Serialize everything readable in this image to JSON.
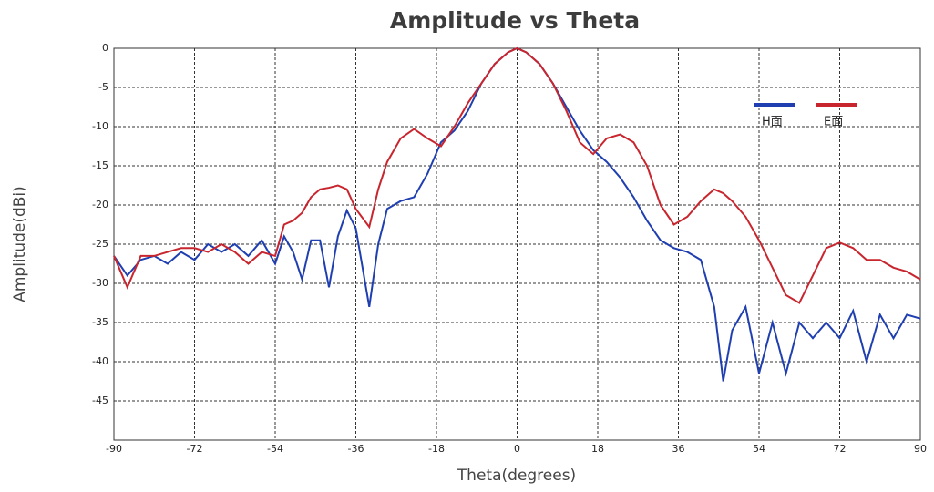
{
  "chart_data": {
    "type": "line",
    "title": "Amplitude vs Theta",
    "x_label": "Theta(degrees)",
    "y_label": "Amplitude(dBi)",
    "x": [
      -90,
      -87,
      -84,
      -81,
      -78,
      -75,
      -72,
      -69,
      -66,
      -63,
      -60,
      -57,
      -54,
      -52,
      -50,
      -48,
      -46,
      -44,
      -42,
      -40,
      -38,
      -36,
      -33,
      -31,
      -29,
      -26,
      -23,
      -20,
      -17,
      -14,
      -11,
      -8,
      -5,
      -2,
      0,
      2,
      5,
      8,
      11,
      14,
      17,
      20,
      23,
      26,
      29,
      32,
      35,
      38,
      41,
      44,
      46,
      48,
      51,
      54,
      57,
      60,
      63,
      66,
      69,
      72,
      75,
      78,
      81,
      84,
      87,
      90
    ],
    "series": [
      {
        "name": "H面",
        "color": "#1f3fb0",
        "values": [
          -26.5,
          -29,
          -27,
          -26.5,
          -27.5,
          -26,
          -27,
          -25,
          -26,
          -25,
          -26.5,
          -24.5,
          -27.5,
          -24,
          -26,
          -29.5,
          -24.5,
          -24.5,
          -30.5,
          -24,
          -20.7,
          -23,
          -33,
          -25,
          -20.5,
          -19.5,
          -19,
          -16,
          -12,
          -10.5,
          -8,
          -4.5,
          -2,
          -0.5,
          0,
          -0.5,
          -2,
          -4.5,
          -7.5,
          -10.5,
          -13,
          -14.5,
          -16.5,
          -19,
          -22,
          -24.5,
          -25.5,
          -26,
          -27,
          -33,
          -42.5,
          -36,
          -33,
          -41.5,
          -35,
          -41.5,
          -35,
          -37,
          -35,
          -37,
          -33.5,
          -40,
          -34,
          -37,
          -34,
          -34.5
        ]
      },
      {
        "name": "E面",
        "color": "#c8262e",
        "values": [
          -26.5,
          -30.5,
          -26.5,
          -26.5,
          -26,
          -25.5,
          -25.5,
          -26,
          -25,
          -26,
          -27.5,
          -26,
          -26.5,
          -22.5,
          -22,
          -21,
          -19,
          -18,
          -17.8,
          -17.5,
          -18,
          -20.5,
          -22.8,
          -18,
          -14.5,
          -11.5,
          -10.3,
          -11.5,
          -12.5,
          -10,
          -7,
          -4.5,
          -2,
          -0.5,
          0,
          -0.5,
          -2,
          -4.5,
          -8,
          -12,
          -13.5,
          -11.5,
          -11,
          -12,
          -15,
          -20,
          -22.5,
          -21.5,
          -19.5,
          -18,
          -18.5,
          -19.5,
          -21.5,
          -24.5,
          -28,
          -31.5,
          -32.5,
          -29,
          -25.5,
          -24.8,
          -25.5,
          -27,
          -27,
          -28,
          -28.5,
          -29.5
        ]
      }
    ],
    "xlim": [
      -90,
      90
    ],
    "xticks": [
      -90,
      -72,
      -54,
      -36,
      -18,
      0,
      18,
      36,
      54,
      72,
      90
    ],
    "ylim": [
      -50,
      0
    ],
    "yticks": [
      0,
      -5,
      -10,
      -15,
      -20,
      -25,
      -30,
      -35,
      -40,
      -45
    ],
    "grid": true,
    "legend": "upper right"
  }
}
